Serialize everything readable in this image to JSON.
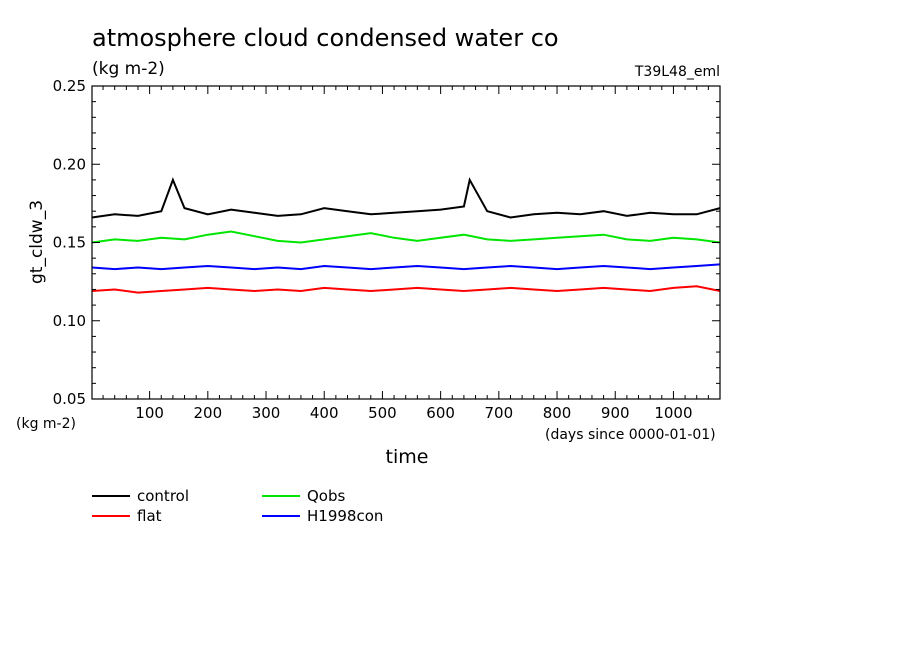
{
  "chart_data": {
    "type": "line",
    "title": "atmosphere cloud condensed water co",
    "subtitle": "(kg m-2)",
    "experiment": "T39L48_eml",
    "ylabel": "gt_cldw_3",
    "yunit": "(kg m-2)",
    "xlabel": "time",
    "xunit": "(days since 0000-01-01)",
    "xlim": [
      1,
      1080
    ],
    "ylim": [
      0.05,
      0.25
    ],
    "xticks": [
      100,
      200,
      300,
      400,
      500,
      600,
      700,
      800,
      900,
      1000
    ],
    "ytick_labels": [
      "0.05",
      "0.10",
      "0.15",
      "0.20",
      "0.25"
    ],
    "grid": false,
    "legend_position": "below plot",
    "series": [
      {
        "name": "control",
        "color": "#000000",
        "x": [
          1,
          40,
          80,
          120,
          140,
          160,
          200,
          240,
          280,
          320,
          360,
          400,
          440,
          480,
          520,
          560,
          600,
          640,
          650,
          680,
          720,
          760,
          800,
          840,
          880,
          920,
          960,
          1000,
          1040,
          1080
        ],
        "y": [
          0.166,
          0.168,
          0.167,
          0.17,
          0.19,
          0.172,
          0.168,
          0.171,
          0.169,
          0.167,
          0.168,
          0.172,
          0.17,
          0.168,
          0.169,
          0.17,
          0.171,
          0.173,
          0.19,
          0.17,
          0.166,
          0.168,
          0.169,
          0.168,
          0.17,
          0.167,
          0.169,
          0.168,
          0.168,
          0.172
        ]
      },
      {
        "name": "Qobs",
        "color": "#00e600",
        "x": [
          1,
          40,
          80,
          120,
          160,
          200,
          240,
          280,
          320,
          360,
          400,
          440,
          480,
          520,
          560,
          600,
          640,
          680,
          720,
          760,
          800,
          840,
          880,
          920,
          960,
          1000,
          1040,
          1080
        ],
        "y": [
          0.15,
          0.152,
          0.151,
          0.153,
          0.152,
          0.155,
          0.157,
          0.154,
          0.151,
          0.15,
          0.152,
          0.154,
          0.156,
          0.153,
          0.151,
          0.153,
          0.155,
          0.152,
          0.151,
          0.152,
          0.153,
          0.154,
          0.155,
          0.152,
          0.151,
          0.153,
          0.152,
          0.15
        ]
      },
      {
        "name": "H1998con",
        "color": "#0000ff",
        "x": [
          1,
          40,
          80,
          120,
          160,
          200,
          240,
          280,
          320,
          360,
          400,
          440,
          480,
          520,
          560,
          600,
          640,
          680,
          720,
          760,
          800,
          840,
          880,
          920,
          960,
          1000,
          1040,
          1080
        ],
        "y": [
          0.134,
          0.133,
          0.134,
          0.133,
          0.134,
          0.135,
          0.134,
          0.133,
          0.134,
          0.133,
          0.135,
          0.134,
          0.133,
          0.134,
          0.135,
          0.134,
          0.133,
          0.134,
          0.135,
          0.134,
          0.133,
          0.134,
          0.135,
          0.134,
          0.133,
          0.134,
          0.135,
          0.136
        ]
      },
      {
        "name": "flat",
        "color": "#ff0000",
        "x": [
          1,
          40,
          80,
          120,
          160,
          200,
          240,
          280,
          320,
          360,
          400,
          440,
          480,
          520,
          560,
          600,
          640,
          680,
          720,
          760,
          800,
          840,
          880,
          920,
          960,
          1000,
          1040,
          1080
        ],
        "y": [
          0.119,
          0.12,
          0.118,
          0.119,
          0.12,
          0.121,
          0.12,
          0.119,
          0.12,
          0.119,
          0.121,
          0.12,
          0.119,
          0.12,
          0.121,
          0.12,
          0.119,
          0.12,
          0.121,
          0.12,
          0.119,
          0.12,
          0.121,
          0.12,
          0.119,
          0.121,
          0.122,
          0.119
        ]
      }
    ]
  }
}
